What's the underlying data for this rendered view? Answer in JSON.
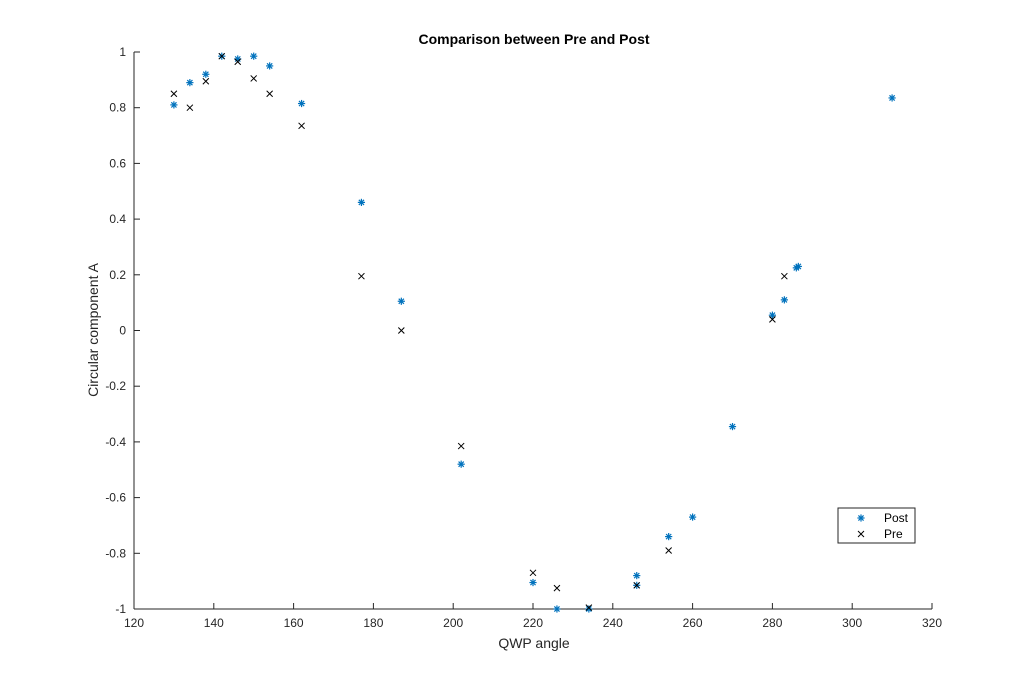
{
  "chart_data": {
    "type": "scatter",
    "title": "Comparison between Pre and Post",
    "xlabel": "QWP angle",
    "ylabel": "Circular component A",
    "xlim": [
      120,
      320
    ],
    "ylim": [
      -1,
      1
    ],
    "xticks": [
      120,
      140,
      160,
      180,
      200,
      220,
      240,
      260,
      280,
      300,
      320
    ],
    "yticks": [
      -1,
      -0.8,
      -0.6,
      -0.4,
      -0.2,
      0,
      0.2,
      0.4,
      0.6,
      0.8,
      1
    ],
    "grid": false,
    "legend_position": "bottom-right",
    "series": [
      {
        "name": "Post",
        "marker": "asterisk",
        "color": "#0072BD",
        "points": [
          [
            130,
            0.81
          ],
          [
            134,
            0.89
          ],
          [
            138,
            0.92
          ],
          [
            142,
            0.985
          ],
          [
            146,
            0.975
          ],
          [
            150,
            0.985
          ],
          [
            154,
            0.95
          ],
          [
            162,
            0.815
          ],
          [
            177,
            0.46
          ],
          [
            187,
            0.105
          ],
          [
            202,
            -0.48
          ],
          [
            220,
            -0.905
          ],
          [
            226,
            -1.0
          ],
          [
            234,
            -1.0
          ],
          [
            246,
            -0.88
          ],
          [
            246,
            -0.915
          ],
          [
            254,
            -0.74
          ],
          [
            260,
            -0.67
          ],
          [
            270,
            -0.345
          ],
          [
            280,
            0.055
          ],
          [
            283,
            0.11
          ],
          [
            286,
            0.225
          ],
          [
            286.5,
            0.23
          ],
          [
            310,
            0.835
          ]
        ]
      },
      {
        "name": "Pre",
        "marker": "x",
        "color": "#000000",
        "points": [
          [
            130,
            0.85
          ],
          [
            134,
            0.8
          ],
          [
            138,
            0.895
          ],
          [
            142,
            0.985
          ],
          [
            146,
            0.965
          ],
          [
            150,
            0.905
          ],
          [
            154,
            0.85
          ],
          [
            162,
            0.735
          ],
          [
            177,
            0.195
          ],
          [
            187,
            0.0
          ],
          [
            202,
            -0.415
          ],
          [
            220,
            -0.87
          ],
          [
            226,
            -0.925
          ],
          [
            234,
            -0.995
          ],
          [
            246,
            -0.915
          ],
          [
            254,
            -0.79
          ],
          [
            280,
            0.04
          ],
          [
            283,
            0.195
          ]
        ]
      }
    ]
  }
}
